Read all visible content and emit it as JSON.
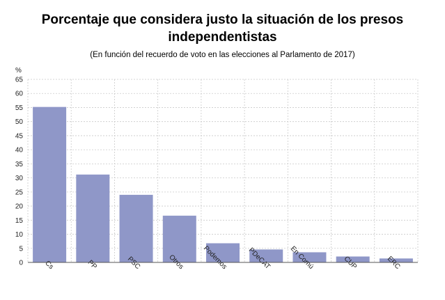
{
  "chart_data": {
    "type": "bar",
    "title_line1": "Porcentaje que considera justo la situación de los presos",
    "title_line2": "independentistas",
    "subtitle": "(En función del recuerdo de voto en las elecciones al Parlamento de 2017)",
    "ylabel": "%",
    "ylim": [
      0,
      65
    ],
    "yticks": [
      "0",
      "5",
      "10",
      "15",
      "20",
      "25",
      "30",
      "35",
      "40",
      "45",
      "50",
      "55",
      "60",
      "65"
    ],
    "categories": [
      "Cs",
      "PP",
      "PSC",
      "Otros",
      "Podemos",
      "PDeCAT",
      "En Comú",
      "CUP",
      "ERC"
    ],
    "values": [
      55.2,
      31.2,
      24.0,
      16.6,
      6.8,
      4.6,
      3.6,
      2.1,
      1.4
    ],
    "grid": true,
    "bar_color": "#8f97c8",
    "legend": "none"
  }
}
